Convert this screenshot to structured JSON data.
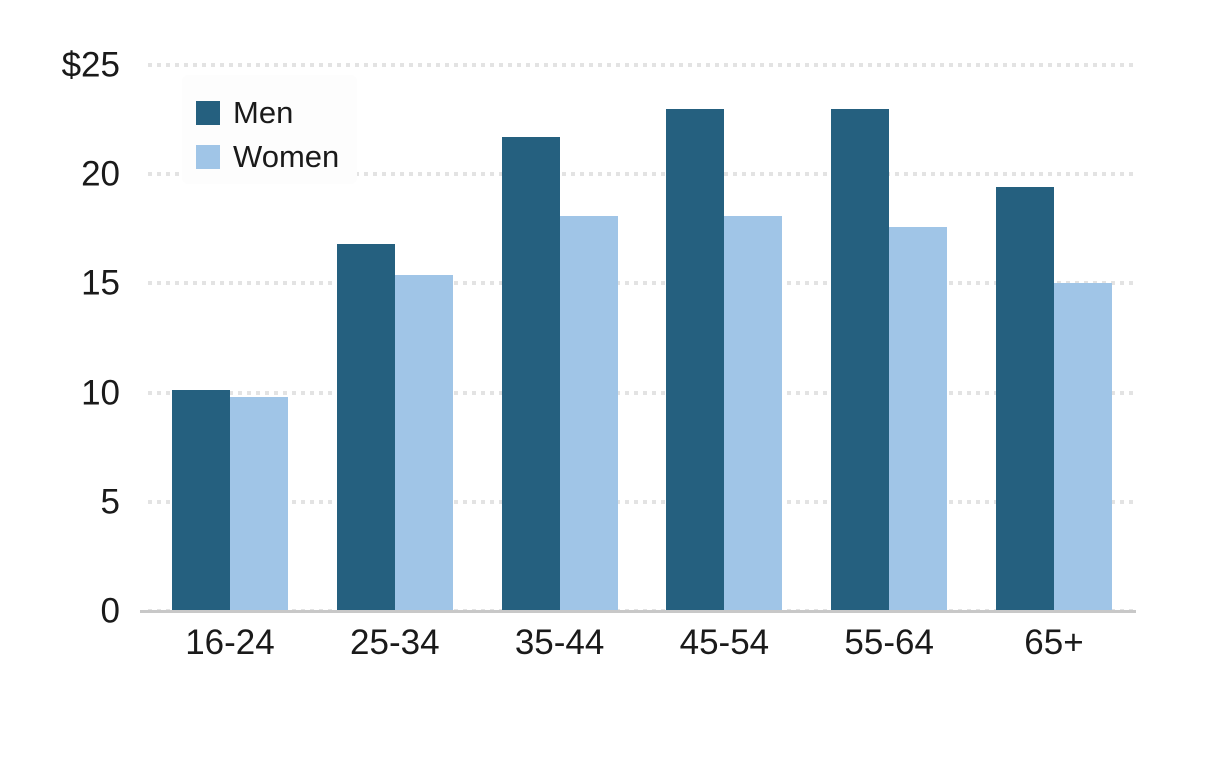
{
  "chart_data": {
    "type": "bar",
    "title": "",
    "xlabel": "",
    "ylabel": "",
    "categories": [
      "16-24",
      "25-34",
      "35-44",
      "45-54",
      "55-64",
      "65+"
    ],
    "series": [
      {
        "name": "Men",
        "color": "#25607F",
        "values": [
          10.1,
          16.8,
          21.7,
          23.0,
          23.0,
          19.4
        ]
      },
      {
        "name": "Women",
        "color": "#A0C5E7",
        "values": [
          9.8,
          15.4,
          18.1,
          18.1,
          17.6,
          15.0
        ]
      }
    ],
    "ylim": [
      0,
      25
    ],
    "y_ticks": [
      {
        "value": 25,
        "label": "$25"
      },
      {
        "value": 20,
        "label": "20"
      },
      {
        "value": 15,
        "label": "15"
      },
      {
        "value": 10,
        "label": "10"
      },
      {
        "value": 5,
        "label": "5"
      },
      {
        "value": 0,
        "label": "0"
      }
    ],
    "grid": "horizontal-dotted",
    "legend_position": "top-left",
    "colors": {
      "grid_dot": "#E3E3E3",
      "axis_line": "#C8C8C8",
      "text": "#1A1A1A",
      "legend_background": "#FDFDFD",
      "background": "#FFFFFF"
    }
  }
}
